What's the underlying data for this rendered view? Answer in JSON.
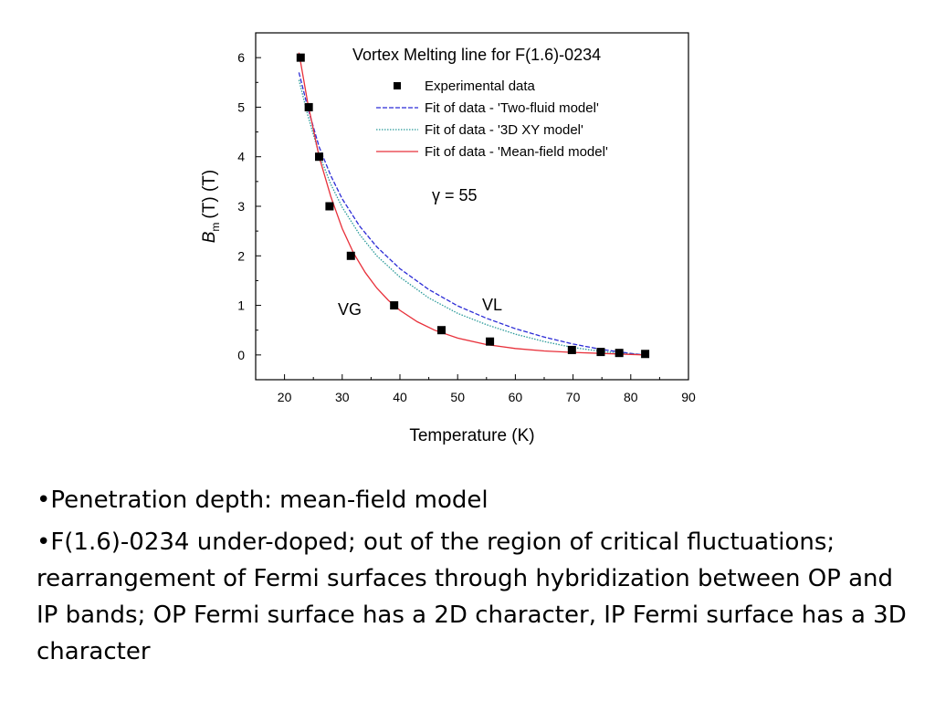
{
  "chart_data": {
    "type": "scatter",
    "title": "Vortex Melting line for F(1.6)-0234",
    "xlabel": "Temperature (K)",
    "ylabel_main": "B",
    "ylabel_sub": "m",
    "ylabel_rest": "(T)  (T)",
    "xlim": [
      15,
      90
    ],
    "ylim": [
      -0.5,
      6.5
    ],
    "xticks": [
      20,
      30,
      40,
      50,
      60,
      70,
      80,
      90
    ],
    "yticks": [
      0,
      1,
      2,
      3,
      4,
      5,
      6
    ],
    "grid": false,
    "legend_position": "top-right",
    "annotations": {
      "gamma": "γ = 55",
      "vg": "VG",
      "vl": "VL"
    },
    "series": [
      {
        "name": "Experimental data",
        "kind": "points",
        "color": "#000000",
        "x": [
          22.8,
          24.2,
          26.0,
          27.8,
          31.5,
          39.0,
          47.2,
          55.6,
          69.8,
          74.8,
          78.0,
          82.5
        ],
        "y": [
          6.0,
          5.0,
          4.0,
          3.0,
          2.0,
          1.0,
          0.5,
          0.27,
          0.1,
          0.06,
          0.04,
          0.02
        ]
      },
      {
        "name": "Fit of data - 'Two-fluid model'",
        "kind": "line",
        "dash": "dashed",
        "color": "#2b2bd6",
        "x": [
          22.5,
          24,
          26,
          28,
          30,
          33,
          36,
          40,
          45,
          50,
          55,
          60,
          65,
          70,
          75,
          80,
          82.5
        ],
        "y": [
          5.7,
          5.0,
          4.2,
          3.62,
          3.15,
          2.6,
          2.18,
          1.74,
          1.32,
          0.99,
          0.74,
          0.53,
          0.36,
          0.22,
          0.11,
          0.03,
          0.0
        ]
      },
      {
        "name": "Fit of data - '3D XY model'",
        "kind": "line",
        "dash": "dotted",
        "color": "#2a9a9a",
        "x": [
          22.5,
          24,
          26,
          28,
          30,
          33,
          36,
          40,
          45,
          50,
          55,
          60,
          65,
          70,
          75,
          80,
          82.5
        ],
        "y": [
          5.55,
          4.85,
          4.05,
          3.45,
          2.98,
          2.43,
          2.0,
          1.57,
          1.15,
          0.84,
          0.61,
          0.42,
          0.27,
          0.15,
          0.07,
          0.02,
          0.0
        ]
      },
      {
        "name": "Fit of data - 'Mean-field model'",
        "kind": "line",
        "dash": "solid",
        "color": "#e8303a",
        "x": [
          22.5,
          24,
          26,
          28,
          30,
          32,
          34,
          36,
          38,
          40,
          43,
          46,
          50,
          55,
          60,
          65,
          70,
          75,
          80,
          82.5
        ],
        "y": [
          6.1,
          5.1,
          4.0,
          3.2,
          2.55,
          2.05,
          1.66,
          1.35,
          1.1,
          0.9,
          0.67,
          0.5,
          0.34,
          0.21,
          0.13,
          0.08,
          0.05,
          0.03,
          0.01,
          0.0
        ]
      }
    ]
  },
  "bullets": [
    "•Penetration depth: mean-field model",
    "•F(1.6)-0234 under-doped; out of the region of critical fluctuations; rearrangement of Fermi surfaces through hybridization between OP and IP bands; OP Fermi surface has a 2D character, IP Fermi surface has a 3D character"
  ]
}
